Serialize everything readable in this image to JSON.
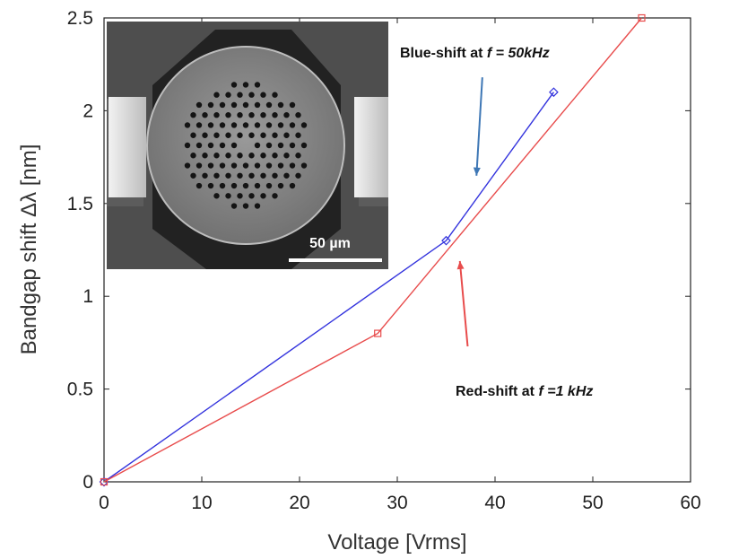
{
  "chart_data": {
    "type": "line",
    "xlabel": "Voltage [Vrms]",
    "ylabel": "Bandgap shift Δλ [nm]",
    "xlim": [
      0,
      60
    ],
    "ylim": [
      0,
      2.5
    ],
    "x_ticks": [
      0,
      10,
      20,
      30,
      40,
      50,
      60
    ],
    "y_ticks": [
      0,
      0.5,
      1,
      1.5,
      2,
      2.5
    ],
    "x_tick_labels": [
      "0",
      "10",
      "20",
      "30",
      "40",
      "50",
      "60"
    ],
    "y_tick_labels": [
      "0",
      "0.5",
      "1",
      "1.5",
      "2",
      "2.5"
    ],
    "grid": false,
    "series": [
      {
        "name": "Blue-shift at f = 50kHz",
        "color": "#3333dd",
        "marker": "diamond",
        "x": [
          0,
          35,
          46
        ],
        "y": [
          0,
          1.3,
          2.1
        ]
      },
      {
        "name": "Red-shift at f =1 kHz",
        "color": "#e84c4c",
        "marker": "square",
        "x": [
          0,
          28,
          55
        ],
        "y": [
          0,
          0.8,
          2.5
        ]
      }
    ],
    "annotations": [
      {
        "series": 0,
        "prefix": "Blue-shift at ",
        "var": "f",
        "suffix": " = 50kHz",
        "full": "Blue-shift at f = 50kHz",
        "arrow_color": "#3e77b5",
        "arrow_from": [
          38.7,
          2.18
        ],
        "arrow_to": [
          38.1,
          1.65
        ]
      },
      {
        "series": 1,
        "prefix": "Red-shift at ",
        "var": "f",
        "suffix": " =1 kHz",
        "full": "Red-shift at f =1 kHz",
        "arrow_color": "#e84c4c",
        "arrow_from": [
          37.2,
          0.73
        ],
        "arrow_to": [
          36.4,
          1.19
        ]
      }
    ],
    "inset": {
      "kind": "SEM micrograph",
      "scale_bar_label": "50 µm"
    }
  }
}
